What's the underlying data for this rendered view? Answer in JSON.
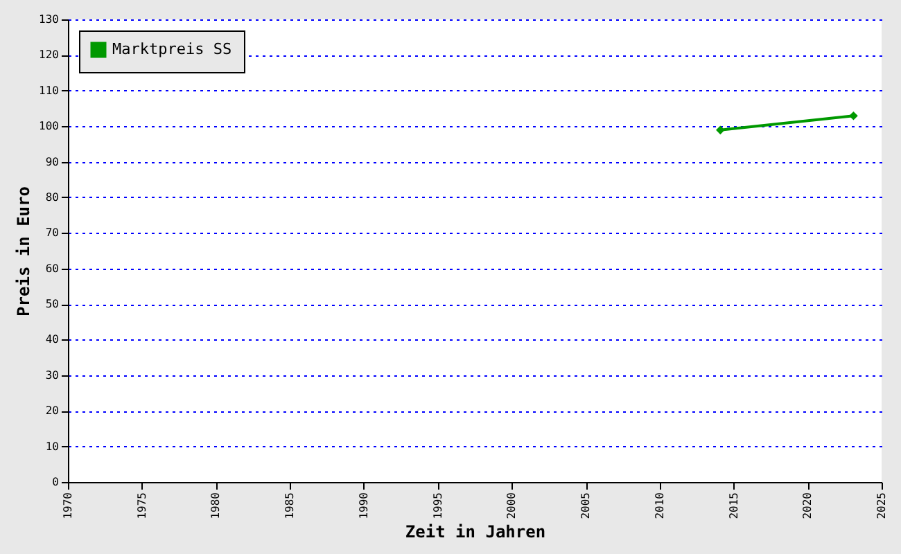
{
  "chart_data": {
    "type": "line",
    "xlabel": "Zeit in Jahren",
    "ylabel": "Preis in Euro",
    "xlim": [
      1970,
      2025
    ],
    "xticks": [
      1970,
      1975,
      1980,
      1985,
      1990,
      1995,
      2000,
      2005,
      2010,
      2015,
      2020,
      2025
    ],
    "ylim": [
      0,
      130
    ],
    "yticks": [
      0,
      10,
      20,
      30,
      40,
      50,
      60,
      70,
      80,
      90,
      100,
      110,
      120,
      130
    ],
    "series": [
      {
        "name": "Marktpreis SS",
        "color": "#009900",
        "x": [
          2014.1,
          2023.1
        ],
        "values": [
          98.9,
          102.9
        ]
      }
    ],
    "grid": "y",
    "legend": "top left",
    "marker": "diamond",
    "line_style": "solid"
  }
}
